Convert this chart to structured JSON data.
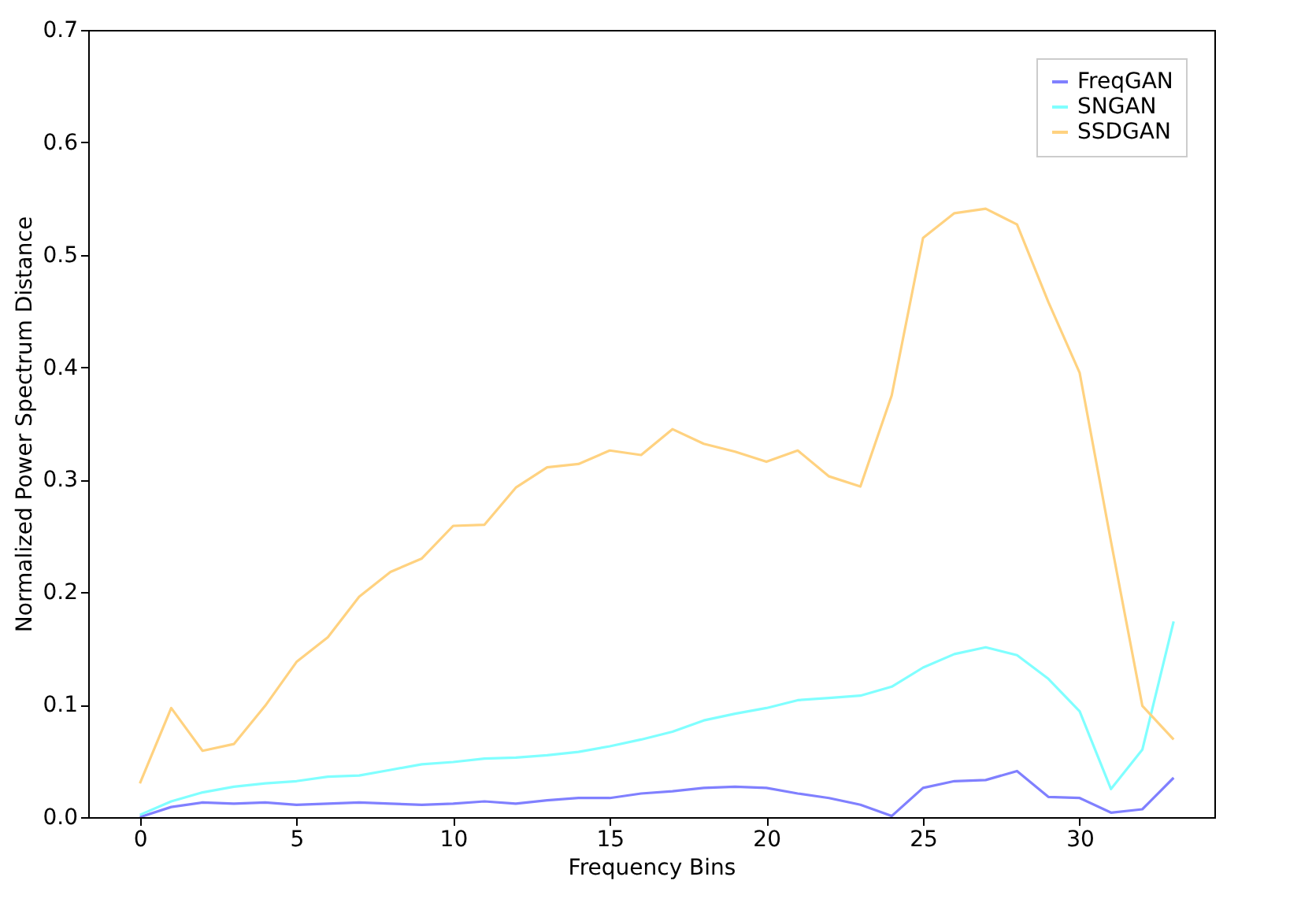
{
  "chart_data": {
    "type": "line",
    "xlabel": "Frequency Bins",
    "ylabel": "Normalized Power Spectrum Distance",
    "x": [
      0,
      1,
      2,
      3,
      4,
      5,
      6,
      7,
      8,
      9,
      10,
      11,
      12,
      13,
      14,
      15,
      16,
      17,
      18,
      19,
      20,
      21,
      22,
      23,
      24,
      25,
      26,
      27,
      28,
      29,
      30,
      31,
      32,
      33
    ],
    "series": [
      {
        "name": "FreqGAN",
        "color": "#8080ff",
        "values": [
          0,
          0.009,
          0.013,
          0.012,
          0.013,
          0.011,
          0.012,
          0.013,
          0.012,
          0.011,
          0.012,
          0.014,
          0.012,
          0.015,
          0.017,
          0.017,
          0.021,
          0.023,
          0.026,
          0.027,
          0.026,
          0.021,
          0.017,
          0.011,
          0.001,
          0.026,
          0.032,
          0.033,
          0.041,
          0.018,
          0.017,
          0.004,
          0.007,
          0.035
        ]
      },
      {
        "name": "SNGAN",
        "color": "#80ffff",
        "values": [
          0.002,
          0.014,
          0.022,
          0.027,
          0.03,
          0.032,
          0.036,
          0.037,
          0.042,
          0.047,
          0.049,
          0.052,
          0.053,
          0.055,
          0.058,
          0.063,
          0.069,
          0.076,
          0.086,
          0.092,
          0.097,
          0.104,
          0.106,
          0.108,
          0.116,
          0.133,
          0.145,
          0.151,
          0.144,
          0.123,
          0.094,
          0.025,
          0.06,
          0.174
        ]
      },
      {
        "name": "SSDGAN",
        "color": "#ffd280",
        "values": [
          0.03,
          0.097,
          0.059,
          0.065,
          0.099,
          0.138,
          0.16,
          0.196,
          0.218,
          0.23,
          0.259,
          0.26,
          0.293,
          0.311,
          0.314,
          0.326,
          0.322,
          0.345,
          0.332,
          0.325,
          0.316,
          0.326,
          0.303,
          0.294,
          0.375,
          0.515,
          0.537,
          0.541,
          0.527,
          0.458,
          0.395,
          0.245,
          0.099,
          0.069
        ]
      }
    ],
    "xlim": [
      -1.65,
      34.3
    ],
    "xticks": [
      0,
      5,
      10,
      15,
      20,
      25,
      30
    ],
    "ylim": [
      0,
      0.7
    ],
    "yticks": [
      {
        "value": 0,
        "label": "0.0"
      },
      0.1,
      0.2,
      0.3,
      0.4,
      0.5,
      0.6,
      0.7
    ],
    "legend": "top right",
    "grid": false
  }
}
